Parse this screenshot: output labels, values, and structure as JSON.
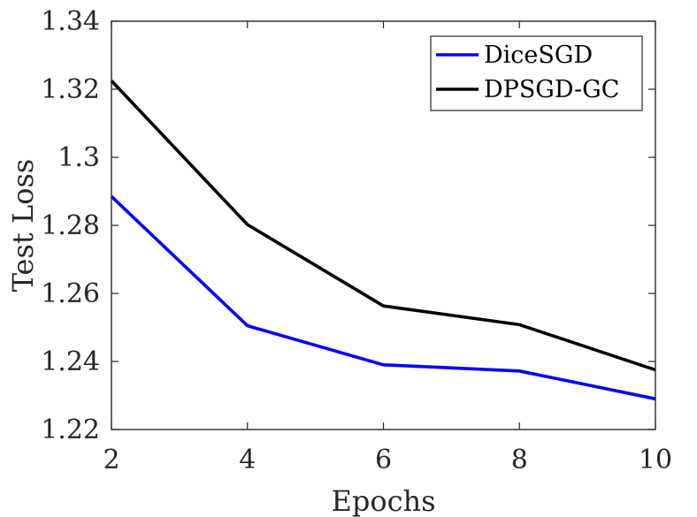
{
  "chart_data": {
    "type": "line",
    "title": "",
    "xlabel": "Epochs",
    "ylabel": "Test Loss",
    "x": [
      2,
      4,
      6,
      8,
      10
    ],
    "xlim": [
      2,
      10
    ],
    "ylim": [
      1.22,
      1.34
    ],
    "xticks": [
      2,
      4,
      6,
      8,
      10
    ],
    "yticks": [
      1.22,
      1.24,
      1.26,
      1.28,
      1.3,
      1.32,
      1.34
    ],
    "ytick_labels": [
      "1.22",
      "1.24",
      "1.26",
      "1.28",
      "1.3",
      "1.32",
      "1.34"
    ],
    "grid": false,
    "legend_position": "top-right",
    "series": [
      {
        "name": "DiceSGD",
        "color": "#0000ff",
        "values": [
          1.2885,
          1.2505,
          1.239,
          1.2372,
          1.229
        ]
      },
      {
        "name": "DPSGD-GC",
        "color": "#000000",
        "values": [
          1.3225,
          1.2802,
          1.2563,
          1.2508,
          1.2375
        ]
      }
    ]
  }
}
